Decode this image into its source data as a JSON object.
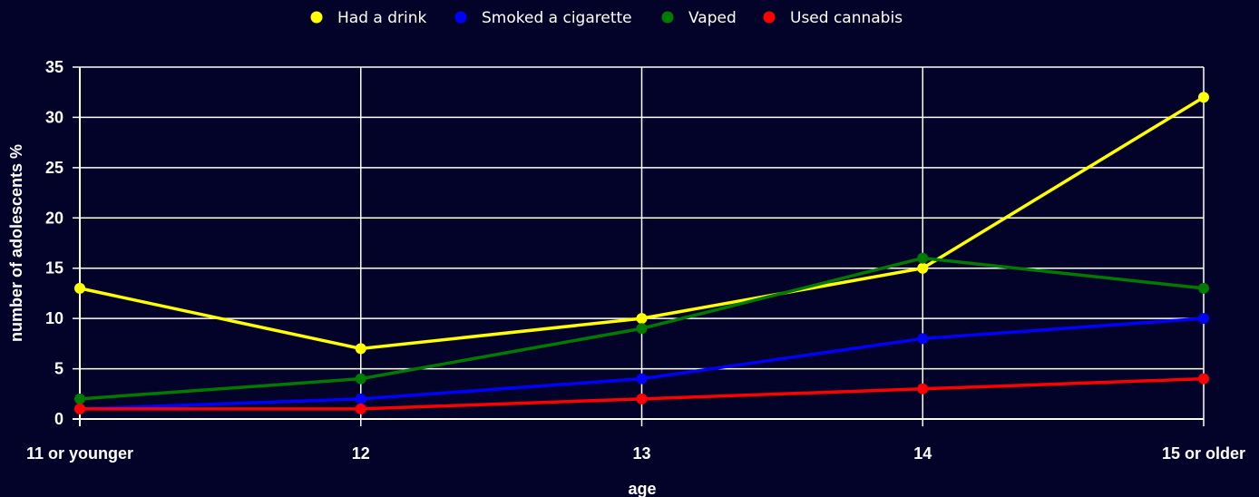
{
  "chart_data": {
    "type": "line",
    "categories": [
      "11 or younger",
      "12",
      "13",
      "14",
      "15 or older"
    ],
    "series": [
      {
        "name": "Had a drink",
        "color": "#ffff00",
        "values": [
          13,
          7,
          10,
          15,
          32
        ]
      },
      {
        "name": "Smoked a cigarette",
        "color": "#0000ff",
        "values": [
          1,
          2,
          4,
          8,
          10
        ]
      },
      {
        "name": "Vaped",
        "color": "#007a00",
        "values": [
          2,
          4,
          9,
          16,
          13
        ]
      },
      {
        "name": "Used cannabis",
        "color": "#ff0000",
        "values": [
          1,
          1,
          2,
          3,
          4
        ]
      }
    ],
    "xlabel": "age",
    "ylabel": "number of adolescents %",
    "ylim": [
      0,
      35
    ],
    "yticks": [
      0,
      5,
      10,
      15,
      20,
      25,
      30,
      35
    ],
    "grid": true,
    "legend_position": "top-center"
  }
}
